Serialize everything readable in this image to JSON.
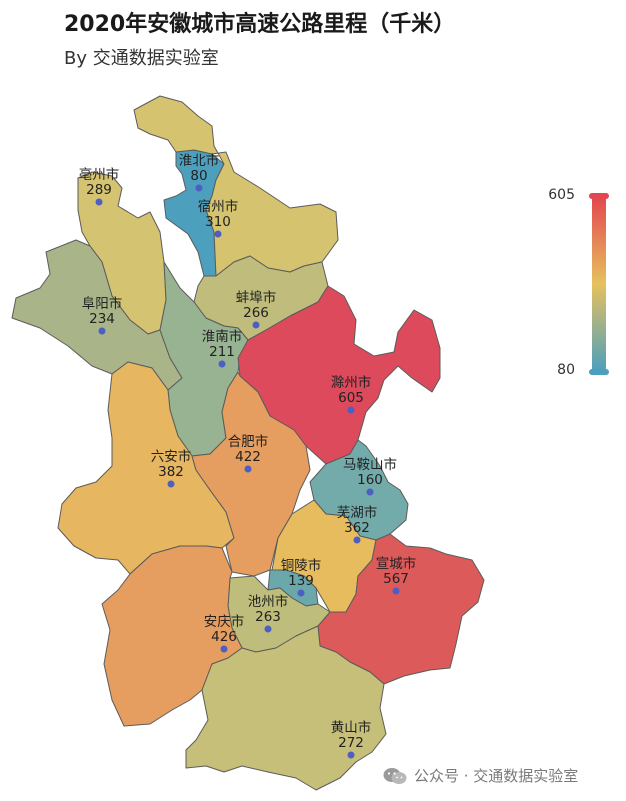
{
  "title": "2020年安徽城市高速公路里程（千米）",
  "subtitle": "By 交通数据实验室",
  "legend": {
    "max": "605",
    "min": "80",
    "colors": [
      "#e34650",
      "#e6c15e",
      "#4c9fbd"
    ]
  },
  "cities": [
    {
      "name": "亳州市",
      "value": "289",
      "color": "#d4c371"
    },
    {
      "name": "淮北市",
      "value": "80",
      "color": "#4c9fbd"
    },
    {
      "name": "宿州市",
      "value": "310",
      "color": "#d5c36f"
    },
    {
      "name": "阜阳市",
      "value": "234",
      "color": "#a9b588"
    },
    {
      "name": "蚌埠市",
      "value": "266",
      "color": "#c0bd7c"
    },
    {
      "name": "淮南市",
      "value": "211",
      "color": "#97b391"
    },
    {
      "name": "滁州市",
      "value": "605",
      "color": "#dc4a5b"
    },
    {
      "name": "六安市",
      "value": "382",
      "color": "#e6b660"
    },
    {
      "name": "合肥市",
      "value": "422",
      "color": "#e59e5f"
    },
    {
      "name": "马鞍山市",
      "value": "160",
      "color": "#73aaaa"
    },
    {
      "name": "芜湖市",
      "value": "362",
      "color": "#e6bc5e"
    },
    {
      "name": "铜陵市",
      "value": "139",
      "color": "#6ba8ac"
    },
    {
      "name": "宣城市",
      "value": "567",
      "color": "#dd5a5a"
    },
    {
      "name": "池州市",
      "value": "263",
      "color": "#bfbd7c"
    },
    {
      "name": "安庆市",
      "value": "426",
      "color": "#e59e5f"
    },
    {
      "name": "黄山市",
      "value": "272",
      "color": "#c6bf79"
    }
  ],
  "watermark": {
    "text": "公众号 · 交通数据实验室",
    "icon": "wechat-icon"
  }
}
